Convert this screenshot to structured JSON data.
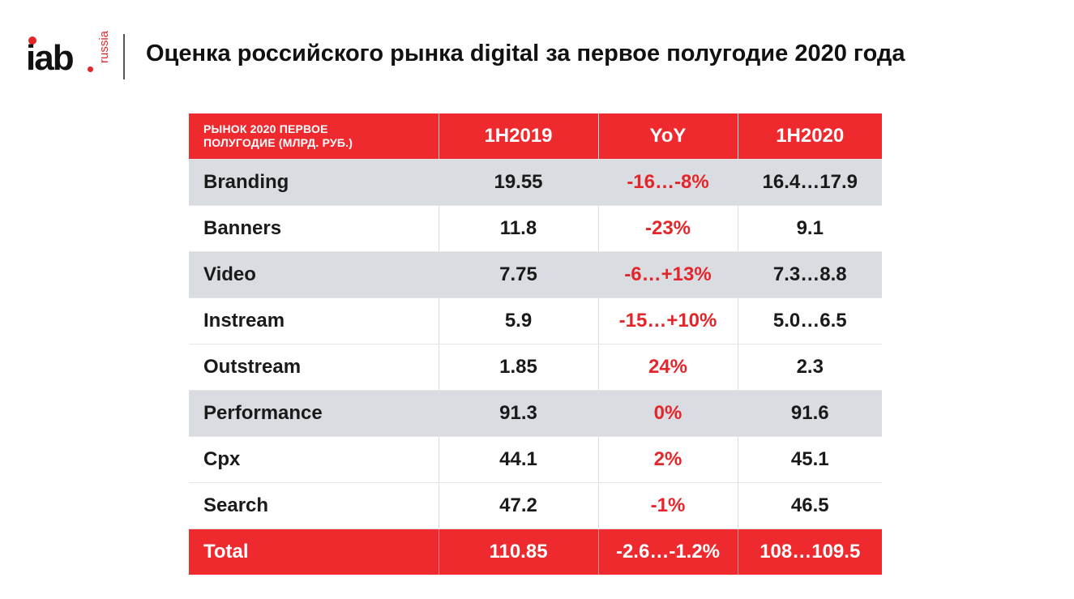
{
  "logo": {
    "main": "iab",
    "sub": "russia"
  },
  "title": "Оценка российского рынка digital за первое полугодие 2020 года",
  "table": {
    "header": {
      "corner_line1": "РЫНОК 2020 ПЕРВОЕ",
      "corner_line2": "ПОЛУГОДИЕ (МЛРД. РУБ.)",
      "col1": "1H2019",
      "col2": "YoY",
      "col3": "1H2020"
    },
    "rows": [
      {
        "label": "Branding",
        "h2019": "19.55",
        "yoy": "-16…-8%",
        "h2020": "16.4…17.9"
      },
      {
        "label": "Banners",
        "h2019": "11.8",
        "yoy": "-23%",
        "h2020": "9.1"
      },
      {
        "label": "Video",
        "h2019": "7.75",
        "yoy": "-6…+13%",
        "h2020": "7.3…8.8"
      },
      {
        "label": "Instream",
        "h2019": "5.9",
        "yoy": "-15…+10%",
        "h2020": "5.0…6.5"
      },
      {
        "label": "Outstream",
        "h2019": "1.85",
        "yoy": "24%",
        "h2020": "2.3"
      },
      {
        "label": "Performance",
        "h2019": "91.3",
        "yoy": "0%",
        "h2020": "91.6"
      },
      {
        "label": "Cpx",
        "h2019": "44.1",
        "yoy": "2%",
        "h2020": "45.1"
      },
      {
        "label": "Search",
        "h2019": "47.2",
        "yoy": "-1%",
        "h2020": "46.5"
      }
    ],
    "total": {
      "label": "Total",
      "h2019": "110.85",
      "yoy": "-2.6…-1.2%",
      "h2020": "108…109.5"
    }
  },
  "colors": {
    "accent_red": "#ee2a2f",
    "shaded_row": "#d9dde2",
    "yoy_text": "#e4262b"
  }
}
